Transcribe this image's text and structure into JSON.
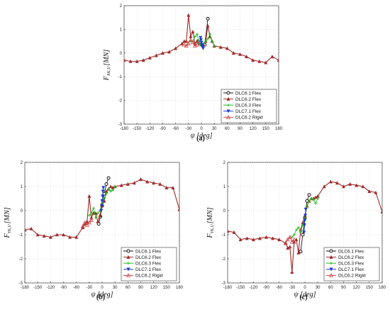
{
  "chart_data": [
    {
      "panel_label": "(a)",
      "type": "line",
      "xlabel": "ψ [deg]",
      "ylabel_main": "F",
      "ylabel_sub": "XK,U",
      "ylabel_unit": "[MN]",
      "xlim": [
        -180,
        180
      ],
      "ylim": [
        -3,
        2
      ],
      "xticks": [
        -180,
        -150,
        -120,
        -90,
        -60,
        -30,
        0,
        30,
        60,
        90,
        120,
        150,
        180
      ],
      "yticks": [
        -3,
        -2,
        -1,
        0,
        1,
        2
      ],
      "grid": true,
      "legend_position": "bottom-right",
      "series": [
        {
          "name": "DLC6.1 Flex",
          "color": "#111111",
          "marker": "circle",
          "x": [
            -8,
            0,
            8,
            15
          ],
          "y": [
            0.5,
            0.35,
            0.35,
            1.45
          ]
        },
        {
          "name": "DLC6.2 Flex",
          "color": "#a02a2a",
          "marker": "triangle",
          "x": [
            -180,
            -165,
            -150,
            -135,
            -120,
            -105,
            -90,
            -75,
            -60,
            -45,
            -40,
            -35,
            -30,
            -25,
            -20,
            -15,
            -10,
            -5,
            0,
            5,
            10,
            15,
            20,
            25,
            30,
            45,
            60,
            75,
            90,
            105,
            120,
            135,
            150,
            165,
            180
          ],
          "y": [
            -0.3,
            -0.35,
            -0.35,
            -0.3,
            -0.2,
            -0.1,
            0,
            0.05,
            0.2,
            0.4,
            0.5,
            0.5,
            1.6,
            0.7,
            0.9,
            0.4,
            0.5,
            0.4,
            0.4,
            0.35,
            0.5,
            1.15,
            0.7,
            0.5,
            0.3,
            0.25,
            0.2,
            0,
            -0.05,
            -0.15,
            -0.3,
            -0.35,
            -0.4,
            -0.15,
            -0.3
          ]
        },
        {
          "name": "DLC6.3 Flex",
          "color": "#22bb22",
          "marker": "plus",
          "x": [
            -25,
            -20,
            -15,
            -10,
            -5,
            0,
            5,
            10,
            15,
            20,
            25,
            30
          ],
          "y": [
            0.5,
            0.5,
            0.7,
            0.8,
            0.4,
            0.3,
            0.4,
            0.5,
            0.6,
            0.8,
            0.5,
            0.3
          ]
        },
        {
          "name": "DLC7.1 Flex",
          "color": "#1a3cd6",
          "marker": "down-triangle",
          "x": [
            -2,
            -1,
            0,
            1,
            2,
            3,
            4
          ],
          "y": [
            0.65,
            0.55,
            0.45,
            0.35,
            0.3,
            0.25,
            0.2
          ]
        },
        {
          "name": "DLC6.2 Rigid",
          "color": "#cc4444",
          "marker": "open-triangle",
          "x": [
            -40,
            -35,
            -30,
            -25,
            -20,
            -15,
            -10
          ],
          "y": [
            0.35,
            0.3,
            0.4,
            0.55,
            0.45,
            0.3,
            0.35
          ]
        }
      ]
    },
    {
      "panel_label": "(b)",
      "type": "line",
      "xlabel": "ψ [deg]",
      "ylabel_main": "F",
      "ylabel_sub": "YK,U",
      "ylabel_unit": "[MN]",
      "xlim": [
        -180,
        180
      ],
      "ylim": [
        -3,
        2
      ],
      "xticks": [
        -180,
        -150,
        -120,
        -90,
        -60,
        -30,
        0,
        30,
        60,
        90,
        120,
        150,
        180
      ],
      "yticks": [
        -3,
        -2,
        -1,
        0,
        1,
        2
      ],
      "grid": true,
      "legend_position": "bottom-right",
      "series": [
        {
          "name": "DLC6.1 Flex",
          "color": "#111111",
          "marker": "circle",
          "x": [
            -8,
            -4,
            0,
            5,
            10,
            15
          ],
          "y": [
            -0.55,
            -0.25,
            0.2,
            0.7,
            1.1,
            1.35
          ]
        },
        {
          "name": "DLC6.2 Flex",
          "color": "#a02a2a",
          "marker": "triangle",
          "x": [
            -180,
            -165,
            -150,
            -135,
            -120,
            -105,
            -90,
            -75,
            -60,
            -45,
            -40,
            -35,
            -30,
            -25,
            -20,
            -15,
            -10,
            -5,
            0,
            5,
            10,
            15,
            20,
            25,
            30,
            45,
            60,
            75,
            90,
            105,
            120,
            135,
            150,
            165,
            180
          ],
          "y": [
            -0.8,
            -0.75,
            -1.0,
            -1.05,
            -1.1,
            -1.0,
            -1.0,
            -1.1,
            -1.1,
            -0.7,
            -0.55,
            -0.45,
            0.6,
            -0.3,
            -0.1,
            -0.1,
            -0.45,
            -0.2,
            0.2,
            0.4,
            0.8,
            0.9,
            1.0,
            0.95,
            1.0,
            1.05,
            1.1,
            1.15,
            1.3,
            1.2,
            1.15,
            1.1,
            0.95,
            0.95,
            0.05
          ]
        },
        {
          "name": "DLC6.3 Flex",
          "color": "#22bb22",
          "marker": "plus",
          "x": [
            -30,
            -25,
            -20,
            -15,
            -10,
            -5,
            0,
            5,
            10,
            15,
            20,
            25,
            30
          ],
          "y": [
            -0.2,
            -0.1,
            0.1,
            -0.3,
            -0.1,
            0.0,
            0.3,
            0.5,
            0.7,
            0.9,
            0.8,
            0.85,
            1.0
          ]
        },
        {
          "name": "DLC7.1 Flex",
          "color": "#1a3cd6",
          "marker": "down-triangle",
          "x": [
            -2,
            -1,
            0,
            1,
            2,
            3
          ],
          "y": [
            0.0,
            0.2,
            0.4,
            0.6,
            0.8,
            0.95
          ]
        },
        {
          "name": "DLC6.2 Rigid",
          "color": "#cc4444",
          "marker": "open-triangle",
          "x": [
            -45,
            -40,
            -35,
            -30,
            -25
          ],
          "y": [
            -0.65,
            -0.5,
            -0.6,
            -0.5,
            -0.4
          ]
        }
      ]
    },
    {
      "panel_label": "(c)",
      "type": "line",
      "xlabel": "ψ [deg]",
      "ylabel_main": "F",
      "ylabel_sub": "YK,U",
      "ylabel_unit": "[MN]",
      "xlim": [
        -180,
        180
      ],
      "ylim": [
        -3,
        2
      ],
      "xticks": [
        -180,
        -150,
        -120,
        -90,
        -60,
        -30,
        0,
        30,
        60,
        90,
        120,
        150,
        180
      ],
      "yticks": [
        -3,
        -2,
        -1,
        0,
        1,
        2
      ],
      "grid": true,
      "legend_position": "bottom-right",
      "series": [
        {
          "name": "DLC6.1 Flex",
          "color": "#111111",
          "marker": "circle",
          "x": [
            -10,
            -5,
            0,
            5,
            10
          ],
          "y": [
            -1.7,
            -1.0,
            -0.3,
            0.4,
            0.65
          ]
        },
        {
          "name": "DLC6.2 Flex",
          "color": "#a02a2a",
          "marker": "triangle",
          "x": [
            -180,
            -165,
            -150,
            -135,
            -120,
            -105,
            -90,
            -75,
            -60,
            -45,
            -40,
            -35,
            -30,
            -25,
            -20,
            -15,
            -10,
            -5,
            0,
            5,
            10,
            15,
            20,
            25,
            30,
            45,
            60,
            75,
            90,
            105,
            120,
            135,
            150,
            165,
            180
          ],
          "y": [
            -0.85,
            -0.9,
            -1.2,
            -1.15,
            -1.2,
            -1.15,
            -1.1,
            -1.15,
            -1.2,
            -1.35,
            -1.55,
            -1.5,
            -2.55,
            -1.3,
            -1.2,
            -1.75,
            -0.8,
            -0.5,
            -0.2,
            0.2,
            0.4,
            0.5,
            0.5,
            0.55,
            0.6,
            1.0,
            1.2,
            1.15,
            1.0,
            1.1,
            1.05,
            1.0,
            0.8,
            0.75,
            -0.05
          ]
        },
        {
          "name": "DLC6.3 Flex",
          "color": "#22bb22",
          "marker": "plus",
          "x": [
            -30,
            -25,
            -20,
            -15,
            -10,
            -5,
            0,
            5,
            10,
            15,
            20,
            25,
            30
          ],
          "y": [
            -1.1,
            -1.0,
            -0.8,
            -0.7,
            -0.9,
            -0.6,
            -0.3,
            0.2,
            0.4,
            0.5,
            0.45,
            0.3,
            0.5
          ]
        },
        {
          "name": "DLC7.1 Flex",
          "color": "#1a3cd6",
          "marker": "down-triangle",
          "x": [
            -2,
            -1,
            0,
            1,
            2
          ],
          "y": [
            -0.9,
            -0.6,
            -0.4,
            -0.2,
            0.05
          ]
        },
        {
          "name": "DLC6.2 Rigid",
          "color": "#cc4444",
          "marker": "open-triangle",
          "x": [
            -45,
            -40,
            -35,
            -30,
            -25
          ],
          "y": [
            -1.35,
            -1.2,
            -1.1,
            -1.3,
            -1.2
          ]
        }
      ]
    }
  ]
}
